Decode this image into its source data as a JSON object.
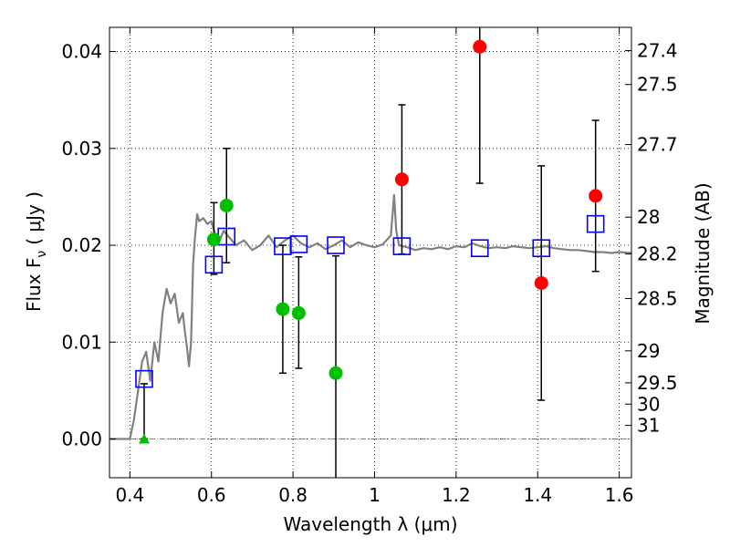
{
  "chart_data": {
    "type": "scatter",
    "xlabel": "Wavelength  λ (μm)",
    "ylabel": "Flux  F",
    "ylabel_sub": "ν",
    "ylabel_unit": "( μJy )",
    "y2label": "Magnitude (AB)",
    "xlim": [
      0.35,
      1.63
    ],
    "ylim": [
      -0.004,
      0.0425
    ],
    "grid": true,
    "xticks": [
      {
        "value": 0.4,
        "label": "0.4"
      },
      {
        "value": 0.6,
        "label": "0.6"
      },
      {
        "value": 0.8,
        "label": "0.8"
      },
      {
        "value": 1.0,
        "label": "1"
      },
      {
        "value": 1.2,
        "label": "1.2"
      },
      {
        "value": 1.4,
        "label": "1.4"
      },
      {
        "value": 1.6,
        "label": "1.6"
      }
    ],
    "yticks": [
      {
        "value": 0.0,
        "label": "0.00"
      },
      {
        "value": 0.01,
        "label": "0.01"
      },
      {
        "value": 0.02,
        "label": "0.02"
      },
      {
        "value": 0.03,
        "label": "0.03"
      },
      {
        "value": 0.04,
        "label": "0.04"
      }
    ],
    "y2ticks": [
      {
        "flux": 0.0401,
        "label": "27.4"
      },
      {
        "flux": 0.0366,
        "label": "27.5"
      },
      {
        "flux": 0.0304,
        "label": "27.7"
      },
      {
        "flux": 0.0229,
        "label": "28"
      },
      {
        "flux": 0.0191,
        "label": "28.2"
      },
      {
        "flux": 0.0145,
        "label": "28.5"
      },
      {
        "flux": 0.0091,
        "label": "29"
      },
      {
        "flux": 0.0058,
        "label": "29.5"
      },
      {
        "flux": 0.0036,
        "label": "30"
      },
      {
        "flux": 0.0014,
        "label": "31"
      }
    ],
    "template_spectrum": [
      [
        0.35,
        0.0
      ],
      [
        0.4,
        0.0
      ],
      [
        0.41,
        0.002
      ],
      [
        0.42,
        0.005
      ],
      [
        0.43,
        0.008
      ],
      [
        0.44,
        0.009
      ],
      [
        0.45,
        0.006
      ],
      [
        0.46,
        0.01
      ],
      [
        0.47,
        0.008
      ],
      [
        0.48,
        0.013
      ],
      [
        0.49,
        0.0155
      ],
      [
        0.5,
        0.014
      ],
      [
        0.51,
        0.015
      ],
      [
        0.52,
        0.012
      ],
      [
        0.53,
        0.013
      ],
      [
        0.535,
        0.011
      ],
      [
        0.54,
        0.0095
      ],
      [
        0.545,
        0.0075
      ],
      [
        0.55,
        0.01
      ],
      [
        0.555,
        0.018
      ],
      [
        0.56,
        0.021
      ],
      [
        0.565,
        0.0232
      ],
      [
        0.57,
        0.0225
      ],
      [
        0.58,
        0.0228
      ],
      [
        0.59,
        0.0222
      ],
      [
        0.6,
        0.0225
      ],
      [
        0.61,
        0.021
      ],
      [
        0.62,
        0.0205
      ],
      [
        0.63,
        0.0215
      ],
      [
        0.64,
        0.021
      ],
      [
        0.66,
        0.02
      ],
      [
        0.68,
        0.0205
      ],
      [
        0.7,
        0.0195
      ],
      [
        0.72,
        0.02
      ],
      [
        0.74,
        0.021
      ],
      [
        0.76,
        0.0198
      ],
      [
        0.78,
        0.0205
      ],
      [
        0.8,
        0.021
      ],
      [
        0.82,
        0.0202
      ],
      [
        0.84,
        0.0198
      ],
      [
        0.86,
        0.0202
      ],
      [
        0.88,
        0.0196
      ],
      [
        0.9,
        0.02
      ],
      [
        0.92,
        0.0205
      ],
      [
        0.94,
        0.0198
      ],
      [
        0.96,
        0.0203
      ],
      [
        0.98,
        0.02
      ],
      [
        1.0,
        0.0198
      ],
      [
        1.02,
        0.0201
      ],
      [
        1.04,
        0.021
      ],
      [
        1.048,
        0.0252
      ],
      [
        1.053,
        0.0215
      ],
      [
        1.06,
        0.02
      ],
      [
        1.08,
        0.0198
      ],
      [
        1.1,
        0.0195
      ],
      [
        1.12,
        0.0197
      ],
      [
        1.14,
        0.0196
      ],
      [
        1.16,
        0.0198
      ],
      [
        1.18,
        0.0196
      ],
      [
        1.2,
        0.0199
      ],
      [
        1.22,
        0.0198
      ],
      [
        1.24,
        0.0202
      ],
      [
        1.26,
        0.0199
      ],
      [
        1.28,
        0.0197
      ],
      [
        1.3,
        0.0198
      ],
      [
        1.32,
        0.0197
      ],
      [
        1.34,
        0.0199
      ],
      [
        1.36,
        0.0198
      ],
      [
        1.38,
        0.0197
      ],
      [
        1.4,
        0.0198
      ],
      [
        1.42,
        0.0199
      ],
      [
        1.44,
        0.0197
      ],
      [
        1.46,
        0.0196
      ],
      [
        1.48,
        0.0195
      ],
      [
        1.5,
        0.0195
      ],
      [
        1.52,
        0.0194
      ],
      [
        1.54,
        0.0193
      ],
      [
        1.56,
        0.0193
      ],
      [
        1.58,
        0.0192
      ],
      [
        1.6,
        0.0193
      ],
      [
        1.63,
        0.0192
      ]
    ],
    "observed": [
      {
        "x": 0.435,
        "y": 0.0,
        "yerr_low": 0.0,
        "yerr_high": 0.0057,
        "color": "#00bf00",
        "marker": "triangle"
      },
      {
        "x": 0.606,
        "y": 0.0206,
        "yerr_low": 0.0036,
        "yerr_high": 0.0038,
        "color": "#00bf00",
        "marker": "circle"
      },
      {
        "x": 0.637,
        "y": 0.0241,
        "yerr_low": 0.0059,
        "yerr_high": 0.0059,
        "color": "#00bf00",
        "marker": "circle"
      },
      {
        "x": 0.775,
        "y": 0.0134,
        "yerr_low": 0.0066,
        "yerr_high": 0.0066,
        "color": "#00bf00",
        "marker": "circle"
      },
      {
        "x": 0.814,
        "y": 0.013,
        "yerr_low": 0.0057,
        "yerr_high": 0.0058,
        "color": "#00bf00",
        "marker": "circle"
      },
      {
        "x": 0.905,
        "y": 0.0068,
        "yerr_low": 0.0108,
        "yerr_high": 0.0121,
        "color": "#00bf00",
        "marker": "circle"
      },
      {
        "x": 1.067,
        "y": 0.0268,
        "yerr_low": 0.0077,
        "yerr_high": 0.0077,
        "color": "#ff0000",
        "marker": "circle"
      },
      {
        "x": 1.258,
        "y": 0.0405,
        "yerr_low": 0.0141,
        "yerr_high": 0.003,
        "color": "#ff0000",
        "marker": "circle"
      },
      {
        "x": 1.409,
        "y": 0.0161,
        "yerr_low": 0.0121,
        "yerr_high": 0.0121,
        "color": "#ff0000",
        "marker": "circle"
      },
      {
        "x": 1.542,
        "y": 0.0251,
        "yerr_low": 0.0078,
        "yerr_high": 0.0078,
        "color": "#ff0000",
        "marker": "circle"
      }
    ],
    "model_photometry": [
      {
        "x": 0.435,
        "y": 0.0062
      },
      {
        "x": 0.606,
        "y": 0.018
      },
      {
        "x": 0.637,
        "y": 0.0209
      },
      {
        "x": 0.775,
        "y": 0.0199
      },
      {
        "x": 0.814,
        "y": 0.0201
      },
      {
        "x": 0.905,
        "y": 0.02
      },
      {
        "x": 1.067,
        "y": 0.0199
      },
      {
        "x": 1.258,
        "y": 0.0197
      },
      {
        "x": 1.409,
        "y": 0.0197
      },
      {
        "x": 1.542,
        "y": 0.0222
      }
    ],
    "colors": {
      "template": "#808080",
      "model_marker": "#0000ff",
      "grid": "#000000",
      "errorbar": "#000000",
      "zero_line": "#808080"
    }
  }
}
